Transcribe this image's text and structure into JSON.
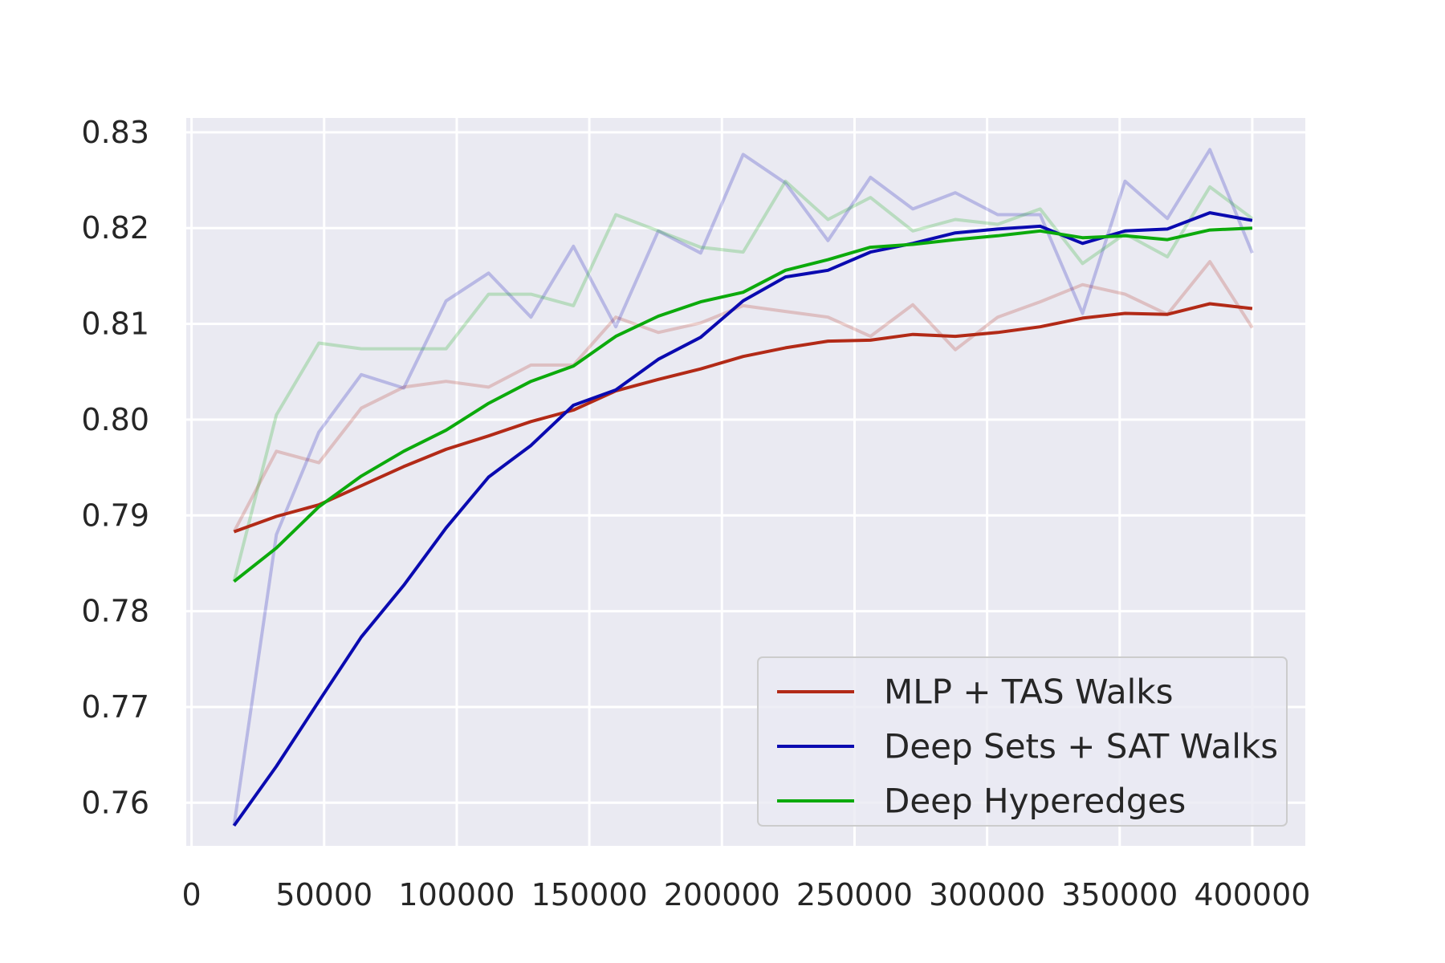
{
  "chart_data": {
    "type": "line",
    "title": "",
    "xlabel": "",
    "ylabel": "",
    "xlim": [
      -2000,
      420000
    ],
    "ylim": [
      0.7555,
      0.8315
    ],
    "xticks": [
      0,
      50000,
      100000,
      150000,
      200000,
      250000,
      300000,
      350000,
      400000
    ],
    "xtick_labels": [
      "0",
      "50000",
      "100000",
      "150000",
      "200000",
      "250000",
      "300000",
      "350000",
      "400000"
    ],
    "yticks": [
      0.76,
      0.77,
      0.78,
      0.79,
      0.8,
      0.81,
      0.82,
      0.83
    ],
    "ytick_labels": [
      "0.76",
      "0.77",
      "0.78",
      "0.79",
      "0.80",
      "0.81",
      "0.82",
      "0.83"
    ],
    "grid": true,
    "background": "#eaeaf2",
    "legend_position": "lower-right",
    "x": [
      16000,
      32000,
      48000,
      64000,
      80000,
      96000,
      112000,
      128000,
      144000,
      160000,
      176000,
      192000,
      208000,
      224000,
      240000,
      256000,
      272000,
      288000,
      304000,
      320000,
      336000,
      352000,
      368000,
      384000,
      400000
    ],
    "series": [
      {
        "name": "MLP + TAS Walks",
        "color": "#b22a17",
        "smoothed": [
          0.7883,
          0.7899,
          0.7911,
          0.7931,
          0.7951,
          0.7969,
          0.7983,
          0.7998,
          0.801,
          0.803,
          0.8042,
          0.8053,
          0.8066,
          0.8075,
          0.8082,
          0.8083,
          0.8089,
          0.8087,
          0.8091,
          0.8097,
          0.8106,
          0.8111,
          0.811,
          0.8121,
          0.8116
        ],
        "raw": [
          0.7883,
          0.7967,
          0.7955,
          0.8012,
          0.8034,
          0.804,
          0.8034,
          0.8057,
          0.8057,
          0.8107,
          0.8091,
          0.8101,
          0.8119,
          0.8113,
          0.8107,
          0.8087,
          0.812,
          0.8073,
          0.8107,
          0.8123,
          0.8141,
          0.8131,
          0.811,
          0.8165,
          0.8096
        ]
      },
      {
        "name": "Deep Sets + SAT Walks",
        "color": "#0a0ab0",
        "smoothed": [
          0.7576,
          0.7638,
          0.7706,
          0.7773,
          0.7827,
          0.7887,
          0.794,
          0.7973,
          0.8015,
          0.8031,
          0.8063,
          0.8086,
          0.8124,
          0.8149,
          0.8156,
          0.8175,
          0.8184,
          0.8195,
          0.8199,
          0.8202,
          0.8184,
          0.8197,
          0.8199,
          0.8216,
          0.8208
        ],
        "raw": [
          0.7576,
          0.788,
          0.7987,
          0.8047,
          0.8033,
          0.8124,
          0.8153,
          0.8107,
          0.8181,
          0.8097,
          0.8197,
          0.8174,
          0.8277,
          0.8247,
          0.8187,
          0.8253,
          0.822,
          0.8237,
          0.8214,
          0.8214,
          0.8111,
          0.8249,
          0.821,
          0.8282,
          0.8174
        ]
      },
      {
        "name": "Deep Hyperedges",
        "color": "#0caa0c",
        "smoothed": [
          0.7831,
          0.7866,
          0.7909,
          0.7941,
          0.7967,
          0.7989,
          0.8017,
          0.804,
          0.8056,
          0.8087,
          0.8108,
          0.8123,
          0.8133,
          0.8156,
          0.8167,
          0.818,
          0.8183,
          0.8188,
          0.8192,
          0.8197,
          0.819,
          0.8192,
          0.8188,
          0.8198,
          0.82
        ],
        "raw": [
          0.7831,
          0.8005,
          0.808,
          0.8074,
          0.8074,
          0.8074,
          0.8131,
          0.8131,
          0.8119,
          0.8214,
          0.8197,
          0.818,
          0.8175,
          0.8249,
          0.8209,
          0.8232,
          0.8197,
          0.8209,
          0.8204,
          0.822,
          0.8163,
          0.8194,
          0.817,
          0.8243,
          0.821
        ]
      }
    ]
  }
}
